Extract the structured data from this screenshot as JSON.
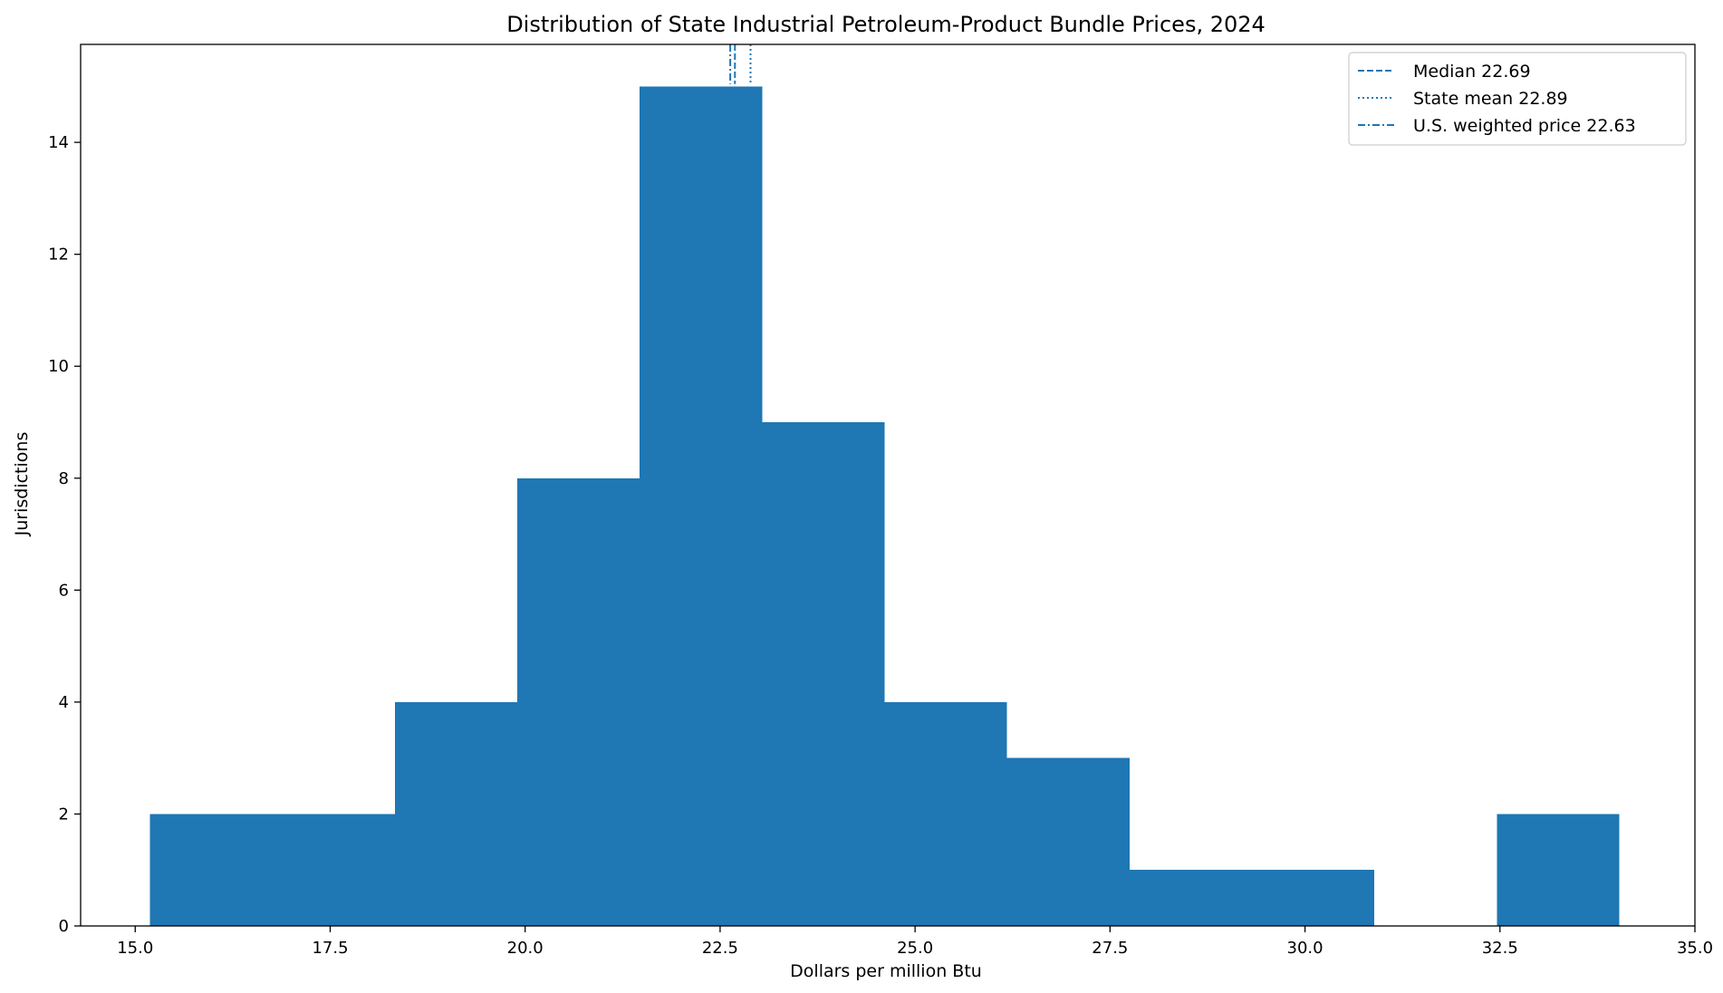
{
  "chart_data": {
    "type": "bar",
    "title": "Distribution of State Industrial Petroleum-Product Bundle Prices, 2024",
    "xlabel": "Dollars per million Btu",
    "ylabel": "Jurisdictions",
    "xlim": [
      14.3,
      35.0
    ],
    "ylim": [
      0,
      15.75
    ],
    "x_ticks": [
      "15.0",
      "17.5",
      "20.0",
      "22.5",
      "25.0",
      "27.5",
      "30.0",
      "32.5",
      "35.0"
    ],
    "x_tick_values": [
      15.0,
      17.5,
      20.0,
      22.5,
      25.0,
      27.5,
      30.0,
      32.5,
      35.0
    ],
    "y_ticks": [
      "0",
      "2",
      "4",
      "6",
      "8",
      "10",
      "12",
      "14"
    ],
    "y_tick_values": [
      0,
      2,
      4,
      6,
      8,
      10,
      12,
      14
    ],
    "bar_color": "#1f77b4",
    "line_color": "#1f77b4",
    "bins": [
      {
        "start": 15.19,
        "end": 16.76,
        "count": 2
      },
      {
        "start": 16.76,
        "end": 18.33,
        "count": 2
      },
      {
        "start": 18.33,
        "end": 19.9,
        "count": 4
      },
      {
        "start": 19.9,
        "end": 21.47,
        "count": 8
      },
      {
        "start": 21.47,
        "end": 23.04,
        "count": 15
      },
      {
        "start": 23.04,
        "end": 24.61,
        "count": 9
      },
      {
        "start": 24.61,
        "end": 26.18,
        "count": 4
      },
      {
        "start": 26.18,
        "end": 27.75,
        "count": 3
      },
      {
        "start": 27.75,
        "end": 29.32,
        "count": 1
      },
      {
        "start": 29.32,
        "end": 30.89,
        "count": 1
      },
      {
        "start": 30.89,
        "end": 32.46,
        "count": 0
      },
      {
        "start": 32.46,
        "end": 34.03,
        "count": 2
      }
    ],
    "reference_lines": [
      {
        "label": "Median 22.69",
        "value": 22.69,
        "style": "dashed"
      },
      {
        "label": "State mean 22.89",
        "value": 22.89,
        "style": "dotted"
      },
      {
        "label": "U.S. weighted price 22.63",
        "value": 22.63,
        "style": "dashdot"
      }
    ],
    "legend_position": "top-right",
    "grid": false
  }
}
